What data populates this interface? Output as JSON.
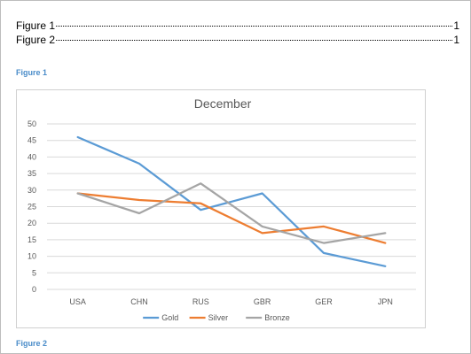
{
  "toc": {
    "entries": [
      {
        "label": "Figure 1",
        "page": "1"
      },
      {
        "label": "Figure 2",
        "page": "1"
      }
    ]
  },
  "captions": {
    "figure1": "Figure 1",
    "figure2": "Figure 2"
  },
  "colors": {
    "caption": "#4a8cc9",
    "gold": "#5b9bd5",
    "silver": "#ed7d31",
    "bronze": "#a5a5a5"
  },
  "chart_data": {
    "type": "line",
    "title": "December",
    "categories": [
      "USA",
      "CHN",
      "RUS",
      "GBR",
      "GER",
      "JPN"
    ],
    "ylim": [
      0,
      50
    ],
    "yticks": [
      0,
      5,
      10,
      15,
      20,
      25,
      30,
      35,
      40,
      45,
      50
    ],
    "grid": true,
    "legend": "bottom",
    "series": [
      {
        "name": "Gold",
        "color": "#5b9bd5",
        "values": [
          46,
          38,
          24,
          29,
          11,
          7
        ]
      },
      {
        "name": "Silver",
        "color": "#ed7d31",
        "values": [
          29,
          27,
          26,
          17,
          19,
          14
        ]
      },
      {
        "name": "Bronze",
        "color": "#a5a5a5",
        "values": [
          29,
          23,
          32,
          19,
          14,
          17
        ]
      }
    ]
  }
}
